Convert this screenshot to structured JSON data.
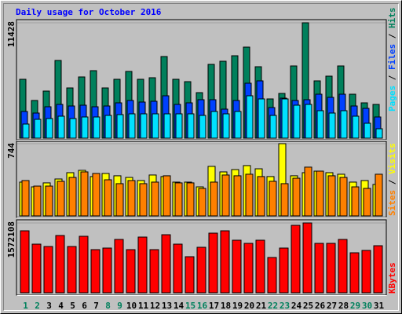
{
  "chart_data": {
    "type": "bar",
    "title": "Daily usage for October 2016",
    "categories": [
      "1",
      "2",
      "3",
      "4",
      "5",
      "6",
      "7",
      "8",
      "9",
      "10",
      "11",
      "12",
      "13",
      "14",
      "15",
      "16",
      "17",
      "18",
      "19",
      "20",
      "21",
      "22",
      "23",
      "24",
      "25",
      "26",
      "27",
      "28",
      "29",
      "30",
      "31"
    ],
    "category_colors": [
      "#00805c",
      "#00805c",
      "#000000",
      "#000000",
      "#000000",
      "#000000",
      "#000000",
      "#00805c",
      "#00805c",
      "#000000",
      "#000000",
      "#000000",
      "#000000",
      "#000000",
      "#00805c",
      "#00805c",
      "#000000",
      "#000000",
      "#000000",
      "#000000",
      "#000000",
      "#00805c",
      "#00805c",
      "#000000",
      "#000000",
      "#000000",
      "#000000",
      "#000000",
      "#00805c",
      "#00805c",
      "#000000"
    ],
    "legend_separator": " / ",
    "panels": [
      {
        "ylim": [
          0,
          11428
        ],
        "yticks": [
          11428
        ],
        "series": [
          {
            "name": "Hits",
            "color": "#00805c",
            "values": [
              5831,
              3732,
              4664,
              7696,
              4975,
              6064,
              6686,
              4975,
              5831,
              6608,
              5831,
              5986,
              8085,
              5831,
              5597,
              4509,
              7308,
              7618,
              8163,
              9018,
              7075,
              3887,
              4431,
              7152,
              11428,
              5675,
              6142,
              7152,
              4353,
              3498,
              3343
            ]
          },
          {
            "name": "Files",
            "color": "#0040ff",
            "values": [
              2643,
              2488,
              3110,
              3343,
              3187,
              3265,
              3110,
              3187,
              3498,
              3732,
              3576,
              3654,
              4198,
              3343,
              3498,
              3809,
              3809,
              2876,
              3732,
              5442,
              5675,
              3032,
              3965,
              3732,
              3809,
              4353,
              4042,
              4353,
              3187,
              2954,
              2099
            ]
          },
          {
            "name": "Pages",
            "color": "#00e0ff",
            "values": [
              1399,
              1866,
              1944,
              2177,
              1944,
              2099,
              2099,
              2254,
              2332,
              2410,
              2410,
              2410,
              2410,
              2410,
              2410,
              2254,
              2643,
              2410,
              2643,
              4198,
              3887,
              2254,
              3887,
              3265,
              3343,
              2721,
              2488,
              2721,
              2177,
              1477,
              933
            ]
          }
        ]
      },
      {
        "ylim": [
          0,
          744
        ],
        "yticks": [
          744
        ],
        "series": [
          {
            "name": "Visits",
            "color": "#ffff00",
            "values": [
              348,
              299,
              340,
              380,
              445,
              469,
              405,
              437,
              413,
              396,
              364,
              421,
              405,
              348,
              348,
              299,
              510,
              453,
              477,
              518,
              485,
              405,
              744,
              413,
              445,
              461,
              445,
              429,
              348,
              364,
              324
            ]
          },
          {
            "name": "Sites",
            "color": "#ff8000",
            "values": [
              364,
              307,
              307,
              356,
              396,
              453,
              437,
              372,
              332,
              364,
              332,
              348,
              413,
              340,
              340,
              283,
              348,
              421,
              413,
              429,
              405,
              356,
              332,
              388,
              502,
              461,
              413,
              396,
              299,
              283,
              429
            ]
          }
        ]
      },
      {
        "ylim": [
          0,
          1572108
        ],
        "yticks": [
          1572108
        ],
        "series": [
          {
            "name": "KBytes",
            "color": "#ff0000",
            "values": [
              1395456,
              1095168,
              1042176,
              1289472,
              1042176,
              1271808,
              971520,
              1006848,
              1201152,
              971520,
              1254144,
              971520,
              1307136,
              1095168,
              812544,
              1024512,
              1342464,
              1395456,
              1183488,
              1112832,
              1183488,
              794880,
              1006848,
              1519104,
              1572108,
              1112832,
              1112832,
              1201152,
              900864,
              953856,
              1059840
            ]
          }
        ]
      }
    ]
  }
}
